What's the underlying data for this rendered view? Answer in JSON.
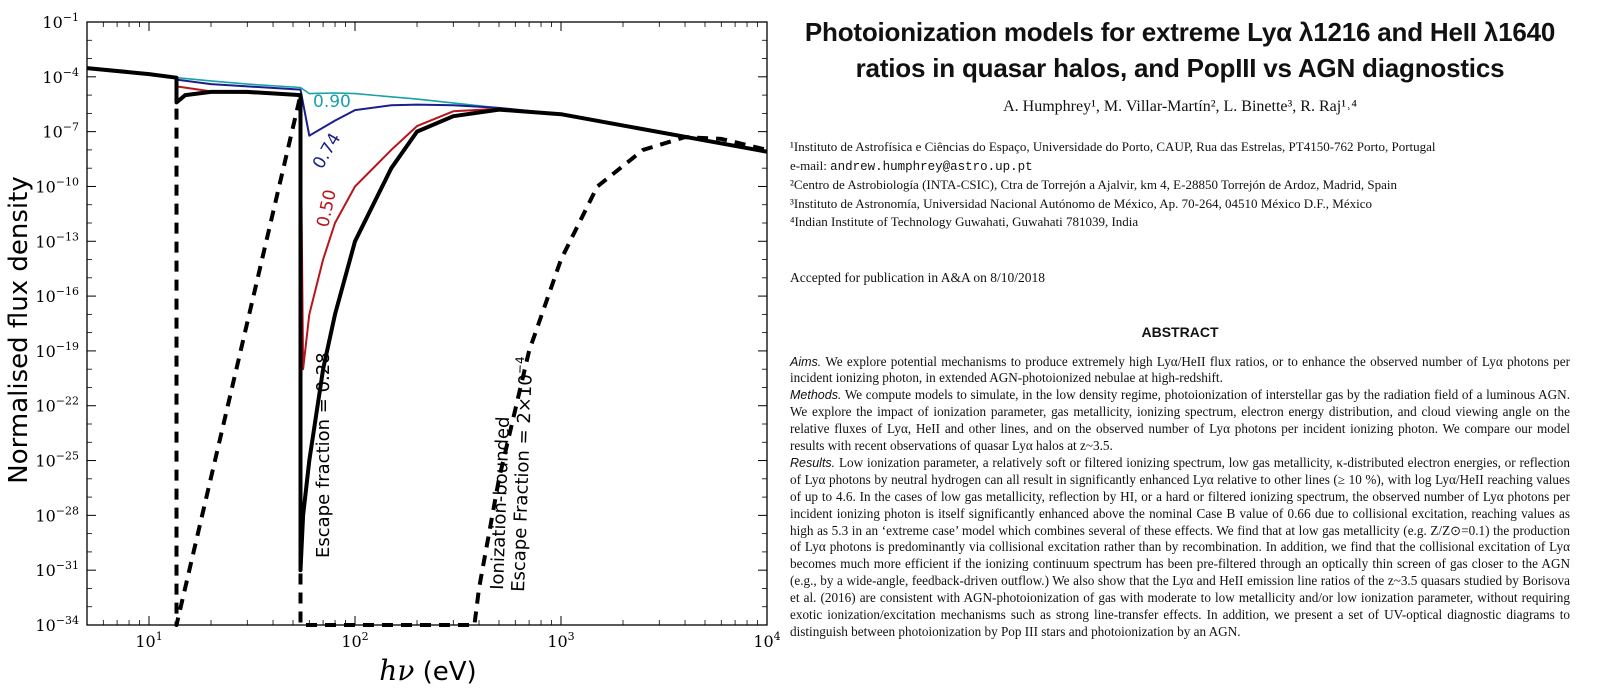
{
  "chart_data": {
    "type": "line",
    "xlabel": "hν (eV)",
    "ylabel": "Normalised flux density",
    "xscale": "log",
    "yscale": "log",
    "xlim": [
      5,
      10000
    ],
    "ylim": [
      1e-34,
      0.1
    ],
    "x_ticks": [
      "10^1",
      "10^2",
      "10^3",
      "10^4"
    ],
    "y_ticks": [
      "10^-1",
      "10^-4",
      "10^-7",
      "10^-10",
      "10^-13",
      "10^-16",
      "10^-19",
      "10^-22",
      "10^-25",
      "10^-28",
      "10^-31",
      "10^-34"
    ],
    "series": [
      {
        "name": "0.90",
        "color": "#17a2a8",
        "style": "solid",
        "x": [
          5,
          10,
          13.6,
          20,
          30,
          54.4,
          60,
          80,
          100,
          200,
          500,
          1000,
          10000
        ],
        "y": [
          0.0003,
          0.00014,
          9e-05,
          6e-05,
          4e-05,
          2.6e-05,
          1.2e-05,
          1.3e-05,
          1.2e-05,
          6e-06,
          2e-06,
          9e-07,
          8e-09
        ]
      },
      {
        "name": "0.74",
        "color": "#1a1f8c",
        "style": "solid",
        "x": [
          13.6,
          20,
          30,
          54.4,
          60,
          80,
          100,
          150,
          200,
          300,
          500,
          1000,
          10000
        ],
        "y": [
          7e-05,
          4e-05,
          3e-05,
          2e-05,
          6e-08,
          4e-07,
          1.5e-06,
          2.8e-06,
          3e-06,
          2.8e-06,
          2e-06,
          9e-07,
          8e-09
        ]
      },
      {
        "name": "0.50",
        "color": "#b8141b",
        "style": "solid",
        "x": [
          13.6,
          20,
          30,
          54.4,
          56,
          60,
          70,
          80,
          100,
          150,
          200,
          300,
          500,
          1000,
          10000
        ],
        "y": [
          3e-05,
          1.6e-05,
          1.3e-05,
          1e-05,
          1e-20,
          1e-17,
          1e-14,
          1e-12,
          1e-10,
          1e-08,
          2e-07,
          1.3e-06,
          1.8e-06,
          9e-07,
          8e-09
        ]
      },
      {
        "name": "Escape fraction = 0.28",
        "color": "#000000",
        "style": "solid",
        "x": [
          5,
          10,
          13.6,
          13.6,
          15,
          20,
          30,
          54.4,
          54.4,
          56,
          60,
          70,
          80,
          100,
          150,
          200,
          300,
          500,
          1000,
          10000
        ],
        "y": [
          0.0003,
          0.00014,
          9e-05,
          4e-06,
          1e-05,
          1.5e-05,
          1.5e-05,
          1e-05,
          1e-31,
          1e-28,
          1e-25,
          1e-20,
          1e-17,
          1e-13,
          1e-09,
          1e-07,
          7e-07,
          1.6e-06,
          9e-07,
          8e-09
        ]
      },
      {
        "name": "Ionization-bounded Escape Fraction = 2×10^-4",
        "color": "#000000",
        "style": "dashed",
        "x": [
          13.6,
          13.6,
          54.4,
          54.4,
          380,
          400,
          500,
          700,
          1000,
          1500,
          2500,
          4000,
          6000,
          10000
        ],
        "y": [
          2e-05,
          1e-34,
          1e-05,
          1e-34,
          1e-34,
          1e-32,
          1e-26,
          1e-19,
          1e-14,
          1e-10,
          1e-08,
          5e-08,
          4e-08,
          1e-08
        ]
      }
    ],
    "annotations": {
      "label_090": "0.90",
      "label_074": "0.74",
      "label_050": "0.50",
      "escape": "Escape fraction = 0.28",
      "ionization_line1": "Ionization-bounded",
      "ionization_line2": "Escape Fraction = 2×10",
      "ionization_exp": "−4"
    },
    "grid": false
  },
  "paper": {
    "title_line1": "Photoionization models for extreme Lyα λ1216 and HeII λ1640",
    "title_line2": "ratios in quasar halos, and PopIII vs AGN diagnostics",
    "authors": "A. Humphrey¹, M. Villar-Martín², L. Binette³, R. Raj¹˒⁴",
    "affiliations": [
      "¹Instituto de Astrofísica e Ciências do Espaço, Universidade do Porto, CAUP, Rua das Estrelas, PT4150-762 Porto, Portugal",
      "²Centro de Astrobiología (INTA-CSIC), Ctra de Torrejón a Ajalvir, km 4, E-28850 Torrejón de Ardoz, Madrid, Spain",
      "³Instituto de Astronomía, Universidad Nacional Autónomo de México, Ap. 70-264, 04510 México D.F., México",
      "⁴Indian Institute of Technology Guwahati, Guwahati 781039, India"
    ],
    "email_label": "e-mail: ",
    "email": "andrew.humphrey@astro.up.pt",
    "accepted": "Accepted for publication in A&A on 8/10/2018",
    "abstract_heading": "ABSTRACT",
    "aims_label": "Aims.",
    "aims_text": " We explore potential mechanisms to produce extremely high Lyα/HeII flux ratios, or to enhance the observed number of Lyα photons per incident ionizing photon, in extended AGN-photoionized nebulae at high-redshift.",
    "methods_label": "Methods.",
    "methods_text": " We compute models to simulate, in the low density regime, photoionization of interstellar gas by the radiation field of a luminous AGN. We explore the impact of ionization parameter, gas metallicity, ionizing spectrum, electron energy distribution, and cloud viewing angle on the relative fluxes of Lyα, HeII and other lines, and on the observed number of Lyα photons per incident ionizing photon. We compare our model results with recent observations of quasar Lyα halos at z~3.5.",
    "results_label": "Results.",
    "results_text": " Low ionization parameter, a relatively soft or filtered ionizing spectrum, low gas metallicity, κ-distributed electron energies, or reflection of Lyα photons by neutral hydrogen can all result in significantly enhanced Lyα relative to other lines (≥ 10 %), with log Lyα/HeII reaching values of up to 4.6. In the cases of low gas metallicity, reflection by HI, or a hard or filtered ionizing spectrum, the observed number of Lyα photons per incident ionizing photon is itself significantly enhanced above the nominal Case B value of 0.66 due to collisional excitation, reaching values as high as 5.3 in an ‘extreme case’ model which combines several of these effects. We find that at low gas metallicity (e.g. Z/Z⊙=0.1) the production of Lyα photons is predominantly via collisional excitation rather than by recombination. In addition, we find that the collisional excitation of Lyα becomes much more efficient if the ionizing continuum spectrum has been pre-filtered through an optically thin screen of gas closer to the AGN (e.g., by a wide-angle, feedback-driven outflow.) We also show that the Lyα and HeII emission line ratios of the z~3.5 quasars studied by Borisova et al. (2016) are consistent with AGN-photoionization of gas with moderate to low metallicity and/or low ionization parameter, without requiring exotic ionization/excitation mechanisms such as strong line-transfer effects. In addition, we present a set of UV-optical diagnostic diagrams to distinguish between photoionization by Pop III stars and photoionization by an AGN."
  }
}
